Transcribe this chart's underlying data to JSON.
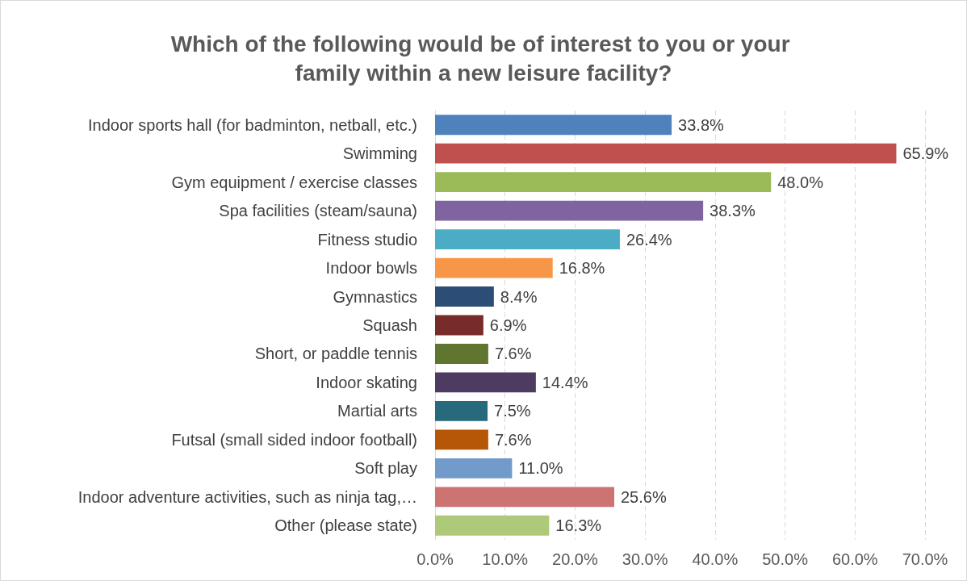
{
  "chart_data": {
    "type": "bar",
    "orientation": "horizontal",
    "title": "Which of the following would be of interest to you or your family within a new leisure facility?",
    "categories": [
      "Indoor sports hall (for badminton, netball, etc.)",
      "Swimming",
      "Gym equipment / exercise classes",
      "Spa facilities (steam/sauna)",
      "Fitness studio",
      "Indoor bowls",
      "Gymnastics",
      "Squash",
      "Short, or paddle tennis",
      "Indoor skating",
      "Martial arts",
      "Futsal (small sided indoor football)",
      "Soft play",
      "Indoor adventure activities, such as ninja tag,…",
      "Other (please state)"
    ],
    "values": [
      33.8,
      65.9,
      48.0,
      38.3,
      26.4,
      16.8,
      8.4,
      6.9,
      7.6,
      14.4,
      7.5,
      7.6,
      11.0,
      25.6,
      16.3
    ],
    "value_labels": [
      "33.8%",
      "65.9%",
      "48.0%",
      "38.3%",
      "26.4%",
      "16.8%",
      "8.4%",
      "6.9%",
      "7.6%",
      "14.4%",
      "7.5%",
      "7.6%",
      "11.0%",
      "25.6%",
      "16.3%"
    ],
    "colors": [
      "#4f81bd",
      "#c0504d",
      "#9bbb59",
      "#8064a2",
      "#4bacc6",
      "#f79646",
      "#2c4d75",
      "#772c2a",
      "#5f7530",
      "#4d3b62",
      "#276a7c",
      "#b65708",
      "#729aca",
      "#cd7371",
      "#afc97a"
    ],
    "xlim": [
      0,
      70
    ],
    "xticks": [
      {
        "value": 0,
        "label": "0.0%"
      },
      {
        "value": 10,
        "label": "10.0%"
      },
      {
        "value": 20,
        "label": "20.0%"
      },
      {
        "value": 30,
        "label": "30.0%"
      },
      {
        "value": 40,
        "label": "40.0%"
      },
      {
        "value": 50,
        "label": "50.0%"
      },
      {
        "value": 60,
        "label": "60.0%"
      },
      {
        "value": 70,
        "label": "70.0%"
      }
    ],
    "grid": "x"
  }
}
